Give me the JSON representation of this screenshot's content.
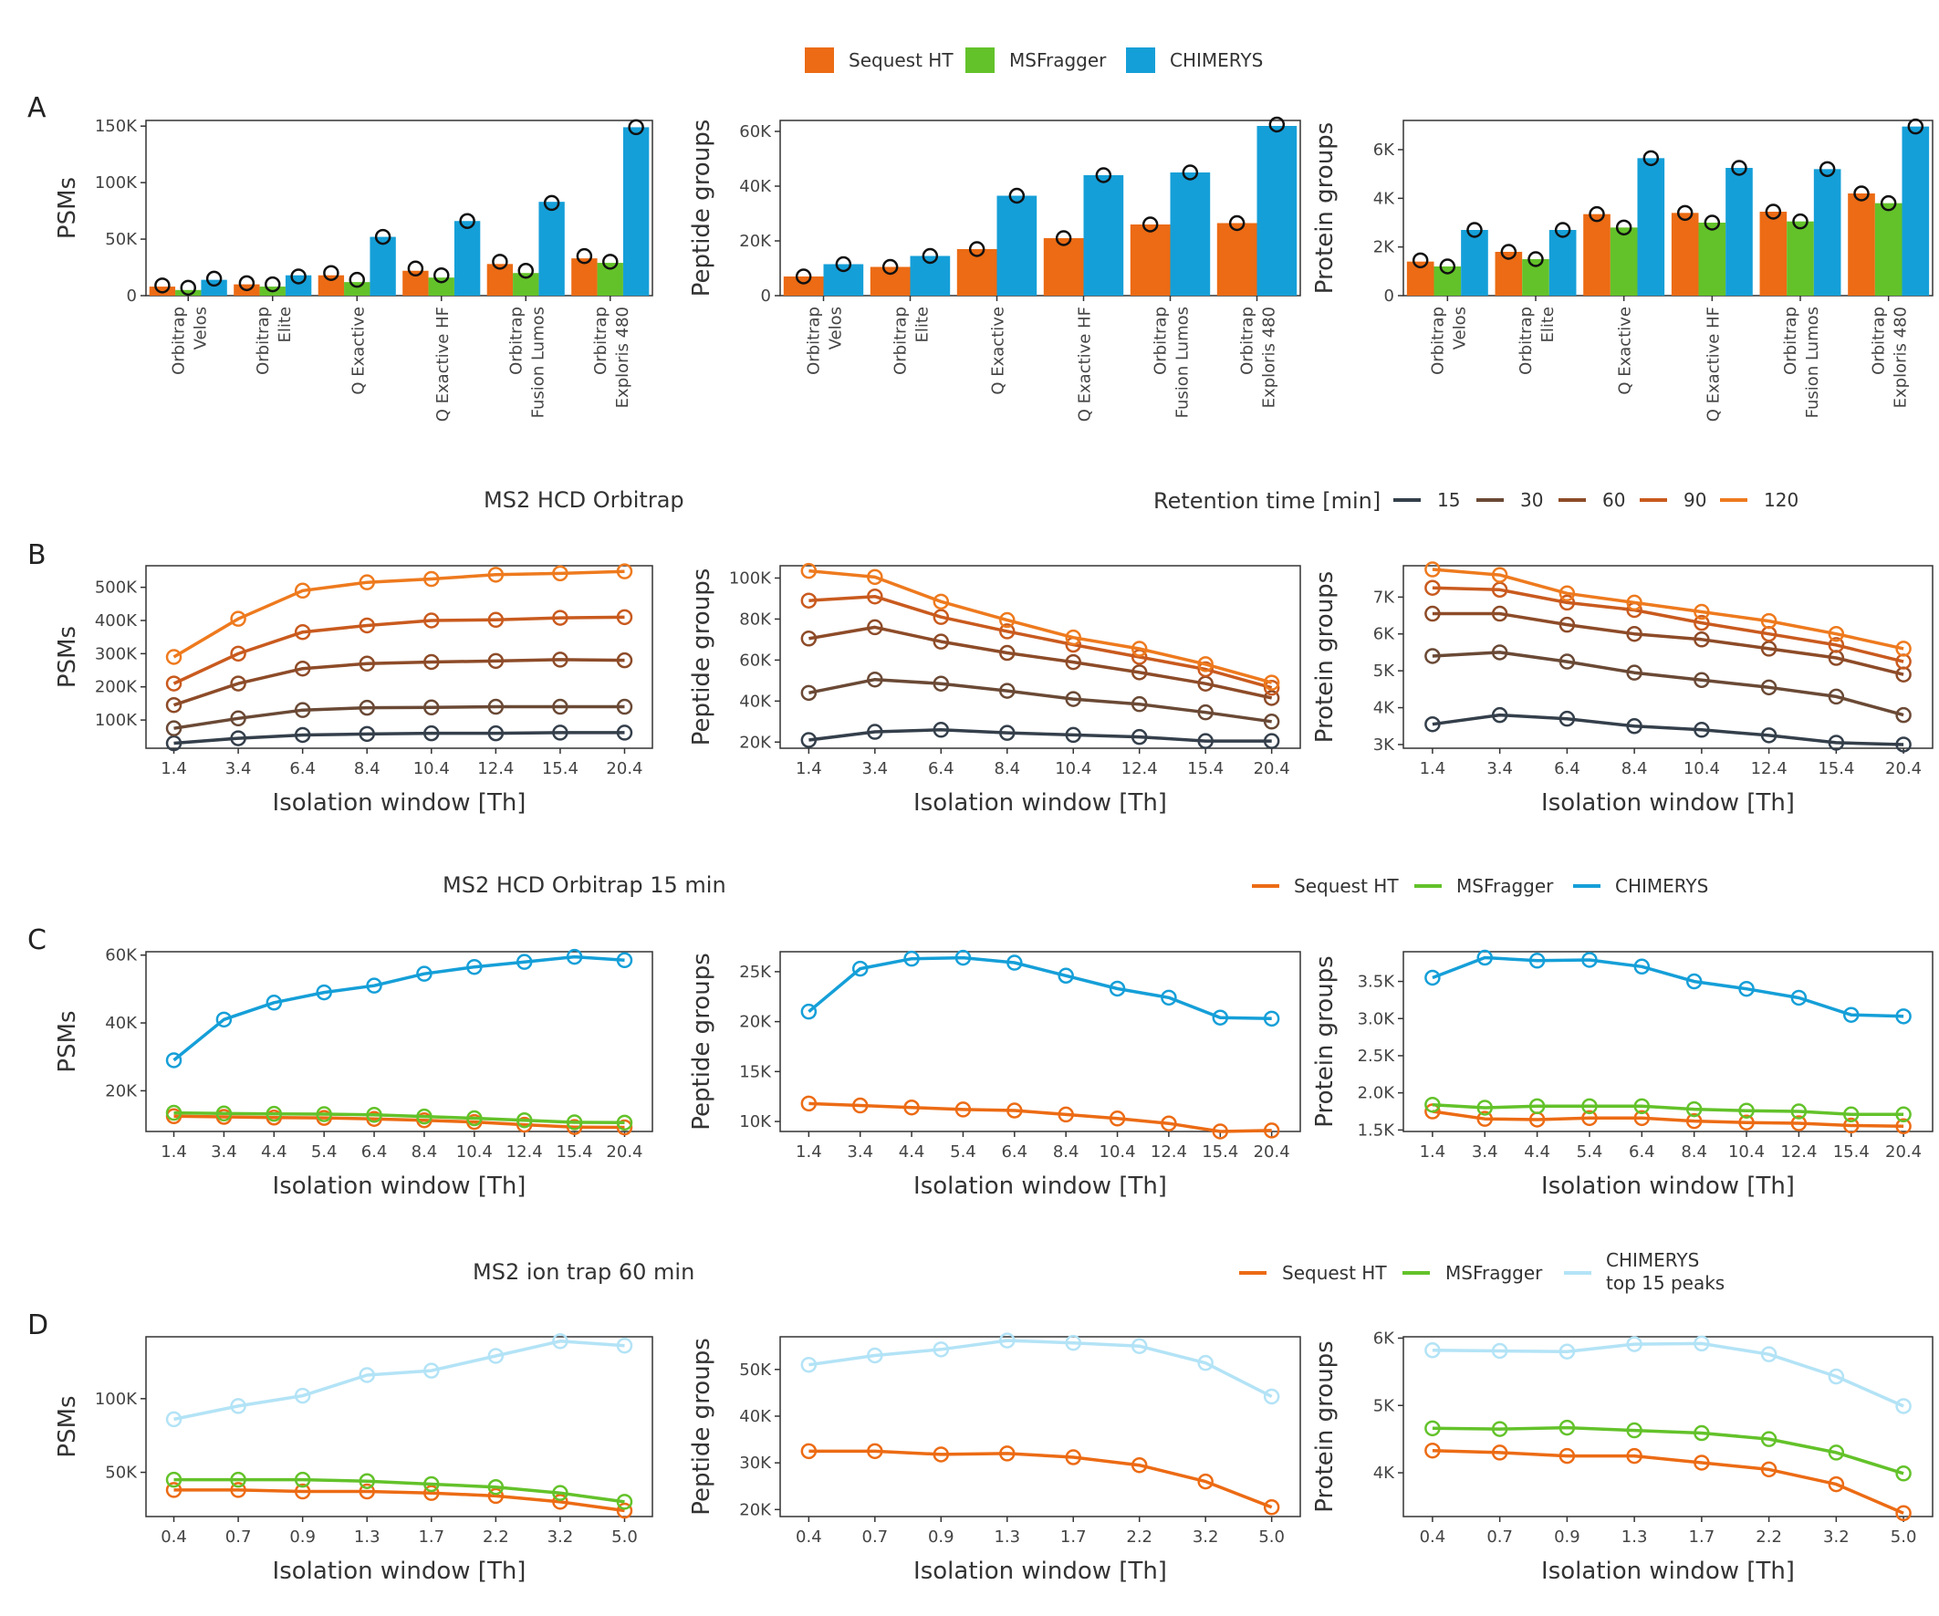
{
  "panel_letters": [
    "A",
    "B",
    "C",
    "D"
  ],
  "colors": {
    "sequest": "#ec6b14",
    "msfragger": "#63c22a",
    "chimerys": "#159fd8",
    "chimerys_light": "#b3e3f6",
    "rt15": "#343f4b",
    "rt30": "#6a4935",
    "rt60": "#8d4b28",
    "rt90": "#c95a1e",
    "rt120": "#ee7a1e"
  },
  "legends": {
    "tools": [
      "Sequest HT",
      "MSFragger",
      "CHIMERYS"
    ],
    "rt_title": "Retention time [min]",
    "rt_values": [
      "15",
      "30",
      "60",
      "90",
      "120"
    ],
    "d_items": [
      "Sequest HT",
      "MSFragger",
      "CHIMERYS",
      "top 15 peaks"
    ]
  },
  "titles": {
    "b": "MS2 HCD Orbitrap",
    "c": "MS2 HCD Orbitrap 15 min",
    "d": "MS2 ion trap 60 min"
  },
  "chart_data": [
    {
      "id": "A1",
      "type": "bar",
      "ylabel": "PSMs",
      "ylim": [
        0,
        155000
      ],
      "yticks": [
        0,
        50000,
        100000,
        150000
      ],
      "ytick_labels": [
        "0",
        "50K",
        "100K",
        "150K"
      ],
      "categories": [
        [
          "Orbitrap",
          "Velos"
        ],
        [
          "Orbitrap",
          "Elite"
        ],
        [
          "Q Exactive"
        ],
        [
          "Q Exactive HF"
        ],
        [
          "Orbitrap",
          "Fusion Lumos"
        ],
        [
          "Orbitrap",
          "Exploris 480"
        ]
      ],
      "series": [
        {
          "name": "Sequest HT",
          "values": [
            8000,
            10000,
            18000,
            22000,
            28000,
            33000
          ],
          "points": [
            9000,
            11000,
            20000,
            24000,
            30000,
            35000
          ]
        },
        {
          "name": "MSFragger",
          "values": [
            5000,
            8000,
            12000,
            16000,
            20000,
            29000
          ],
          "points": [
            7000,
            10000,
            14000,
            18000,
            22000,
            30000
          ]
        },
        {
          "name": "CHIMERYS",
          "values": [
            14000,
            18000,
            52000,
            66000,
            83000,
            149000
          ],
          "points": [
            15000,
            17000,
            52000,
            66000,
            82000,
            149000
          ]
        }
      ]
    },
    {
      "id": "A2",
      "type": "bar",
      "ylabel": "Peptide groups",
      "ylim": [
        0,
        64000
      ],
      "yticks": [
        0,
        20000,
        40000,
        60000
      ],
      "ytick_labels": [
        "0",
        "20K",
        "40K",
        "60K"
      ],
      "categories": [
        [
          "Orbitrap",
          "Velos"
        ],
        [
          "Orbitrap",
          "Elite"
        ],
        [
          "Q Exactive"
        ],
        [
          "Q Exactive HF"
        ],
        [
          "Orbitrap",
          "Fusion Lumos"
        ],
        [
          "Orbitrap",
          "Exploris 480"
        ]
      ],
      "series": [
        {
          "name": "Sequest HT",
          "values": [
            7000,
            10500,
            17000,
            21000,
            26000,
            26500
          ],
          "points": [
            7000,
            10500,
            17000,
            21000,
            26000,
            26500
          ]
        },
        {
          "name": "CHIMERYS",
          "values": [
            11500,
            14500,
            36500,
            44000,
            45000,
            62000
          ],
          "points": [
            11500,
            14500,
            36500,
            44000,
            45000,
            62500
          ]
        }
      ]
    },
    {
      "id": "A3",
      "type": "bar",
      "ylabel": "Protein groups",
      "ylim": [
        0,
        7200
      ],
      "yticks": [
        0,
        2000,
        4000,
        6000
      ],
      "ytick_labels": [
        "0",
        "2K",
        "4K",
        "6K"
      ],
      "categories": [
        [
          "Orbitrap",
          "Velos"
        ],
        [
          "Orbitrap",
          "Elite"
        ],
        [
          "Q Exactive"
        ],
        [
          "Q Exactive HF"
        ],
        [
          "Orbitrap",
          "Fusion Lumos"
        ],
        [
          "Orbitrap",
          "Exploris 480"
        ]
      ],
      "series": [
        {
          "name": "Sequest HT",
          "values": [
            1400,
            1800,
            3350,
            3400,
            3450,
            4200
          ],
          "points": [
            1450,
            1800,
            3350,
            3400,
            3450,
            4200
          ]
        },
        {
          "name": "MSFragger",
          "values": [
            1200,
            1500,
            2800,
            3000,
            3050,
            3800
          ],
          "points": [
            1200,
            1500,
            2800,
            3000,
            3050,
            3800
          ]
        },
        {
          "name": "CHIMERYS",
          "values": [
            2700,
            2700,
            5650,
            5250,
            5200,
            6950
          ],
          "points": [
            2700,
            2700,
            5650,
            5250,
            5200,
            6950
          ]
        }
      ]
    },
    {
      "id": "B1",
      "type": "line",
      "xlabel": "Isolation window [Th]",
      "ylabel": "PSMs",
      "x": [
        "1.4",
        "3.4",
        "6.4",
        "8.4",
        "10.4",
        "12.4",
        "15.4",
        "20.4"
      ],
      "ylim": [
        15000,
        565000
      ],
      "yticks": [
        100000,
        200000,
        300000,
        400000,
        500000
      ],
      "ytick_labels": [
        "100K",
        "200K",
        "300K",
        "400K",
        "500K"
      ],
      "series": [
        {
          "name": "15",
          "color_key": "rt15",
          "values": [
            30000,
            45000,
            55000,
            58000,
            60000,
            60000,
            62000,
            62000
          ]
        },
        {
          "name": "30",
          "color_key": "rt30",
          "values": [
            75000,
            105000,
            130000,
            137000,
            138000,
            140000,
            140000,
            140000
          ]
        },
        {
          "name": "60",
          "color_key": "rt60",
          "values": [
            145000,
            210000,
            255000,
            270000,
            275000,
            278000,
            282000,
            280000
          ]
        },
        {
          "name": "90",
          "color_key": "rt90",
          "values": [
            210000,
            300000,
            365000,
            385000,
            400000,
            402000,
            408000,
            410000
          ]
        },
        {
          "name": "120",
          "color_key": "rt120",
          "values": [
            290000,
            405000,
            490000,
            515000,
            525000,
            538000,
            542000,
            548000
          ]
        }
      ]
    },
    {
      "id": "B2",
      "type": "line",
      "xlabel": "Isolation window [Th]",
      "ylabel": "Peptide groups",
      "x": [
        "1.4",
        "3.4",
        "6.4",
        "8.4",
        "10.4",
        "12.4",
        "15.4",
        "20.4"
      ],
      "ylim": [
        17000,
        106000
      ],
      "yticks": [
        20000,
        40000,
        60000,
        80000,
        100000
      ],
      "ytick_labels": [
        "20K",
        "40K",
        "60K",
        "80K",
        "100K"
      ],
      "series": [
        {
          "name": "15",
          "color_key": "rt15",
          "values": [
            21000,
            25000,
            26000,
            24500,
            23500,
            22500,
            20500,
            20500
          ]
        },
        {
          "name": "30",
          "color_key": "rt30",
          "values": [
            44000,
            50500,
            48500,
            45000,
            41000,
            38500,
            34500,
            30000
          ]
        },
        {
          "name": "60",
          "color_key": "rt60",
          "values": [
            70500,
            76000,
            69000,
            63500,
            59000,
            54000,
            48500,
            41500
          ]
        },
        {
          "name": "90",
          "color_key": "rt90",
          "values": [
            89000,
            91000,
            81000,
            74000,
            67500,
            61500,
            55500,
            46500
          ]
        },
        {
          "name": "120",
          "color_key": "rt120",
          "values": [
            103500,
            100500,
            88500,
            79500,
            71000,
            65500,
            58000,
            49000
          ]
        }
      ]
    },
    {
      "id": "B3",
      "type": "line",
      "xlabel": "Isolation window [Th]",
      "ylabel": "Protein groups",
      "x": [
        "1.4",
        "3.4",
        "6.4",
        "8.4",
        "10.4",
        "12.4",
        "15.4",
        "20.4"
      ],
      "ylim": [
        2900,
        7850
      ],
      "yticks": [
        3000,
        4000,
        5000,
        6000,
        7000
      ],
      "ytick_labels": [
        "3K",
        "4K",
        "5K",
        "6K",
        "7K"
      ],
      "series": [
        {
          "name": "15",
          "color_key": "rt15",
          "values": [
            3550,
            3800,
            3700,
            3500,
            3400,
            3250,
            3050,
            3000
          ]
        },
        {
          "name": "30",
          "color_key": "rt30",
          "values": [
            5400,
            5500,
            5250,
            4950,
            4750,
            4550,
            4300,
            3800
          ]
        },
        {
          "name": "60",
          "color_key": "rt60",
          "values": [
            6550,
            6550,
            6250,
            6000,
            5850,
            5600,
            5350,
            4900
          ]
        },
        {
          "name": "90",
          "color_key": "rt90",
          "values": [
            7250,
            7200,
            6850,
            6650,
            6300,
            6000,
            5700,
            5250
          ]
        },
        {
          "name": "120",
          "color_key": "rt120",
          "values": [
            7750,
            7600,
            7100,
            6850,
            6600,
            6350,
            6000,
            5600
          ]
        }
      ]
    },
    {
      "id": "C1",
      "type": "line",
      "xlabel": "Isolation window [Th]",
      "ylabel": "PSMs",
      "x": [
        "1.4",
        "3.4",
        "4.4",
        "5.4",
        "6.4",
        "8.4",
        "10.4",
        "12.4",
        "15.4",
        "20.4"
      ],
      "ylim": [
        8000,
        61000
      ],
      "yticks": [
        20000,
        40000,
        60000
      ],
      "ytick_labels": [
        "20K",
        "40K",
        "60K"
      ],
      "series": [
        {
          "name": "Sequest HT",
          "color_key": "sequest",
          "values": [
            12500,
            12300,
            12100,
            12000,
            11700,
            11300,
            10800,
            10000,
            9300,
            9200
          ]
        },
        {
          "name": "MSFragger",
          "color_key": "msfragger",
          "values": [
            13500,
            13300,
            13200,
            13100,
            12900,
            12400,
            11900,
            11300,
            10700,
            10600
          ]
        },
        {
          "name": "CHIMERYS",
          "color_key": "chimerys",
          "values": [
            29000,
            41000,
            46000,
            49000,
            51000,
            54500,
            56500,
            58000,
            59500,
            58500
          ]
        }
      ]
    },
    {
      "id": "C2",
      "type": "line",
      "xlabel": "Isolation window [Th]",
      "ylabel": "Peptide groups",
      "x": [
        "1.4",
        "3.4",
        "4.4",
        "5.4",
        "6.4",
        "8.4",
        "10.4",
        "12.4",
        "15.4",
        "20.4"
      ],
      "ylim": [
        9000,
        27000
      ],
      "yticks": [
        10000,
        15000,
        20000,
        25000
      ],
      "ytick_labels": [
        "10K",
        "15K",
        "20K",
        "25K"
      ],
      "series": [
        {
          "name": "Sequest HT",
          "color_key": "sequest",
          "values": [
            11800,
            11600,
            11400,
            11200,
            11100,
            10700,
            10300,
            9800,
            9000,
            9100
          ]
        },
        {
          "name": "CHIMERYS",
          "color_key": "chimerys",
          "values": [
            21000,
            25300,
            26300,
            26400,
            25900,
            24600,
            23300,
            22400,
            20400,
            20300
          ]
        }
      ]
    },
    {
      "id": "C3",
      "type": "line",
      "xlabel": "Isolation window [Th]",
      "ylabel": "Protein groups",
      "x": [
        "1.4",
        "3.4",
        "4.4",
        "5.4",
        "6.4",
        "8.4",
        "10.4",
        "12.4",
        "15.4",
        "20.4"
      ],
      "ylim": [
        1480,
        3900
      ],
      "yticks": [
        1500,
        2000,
        2500,
        3000,
        3500
      ],
      "ytick_labels": [
        "1.5K",
        "2.0K",
        "2.5K",
        "3.0K",
        "3.5K"
      ],
      "series": [
        {
          "name": "Sequest HT",
          "color_key": "sequest",
          "values": [
            1750,
            1650,
            1640,
            1660,
            1660,
            1620,
            1600,
            1590,
            1560,
            1550
          ]
        },
        {
          "name": "MSFragger",
          "color_key": "msfragger",
          "values": [
            1840,
            1800,
            1820,
            1820,
            1820,
            1780,
            1760,
            1750,
            1710,
            1710
          ]
        },
        {
          "name": "CHIMERYS",
          "color_key": "chimerys",
          "values": [
            3550,
            3820,
            3780,
            3790,
            3700,
            3500,
            3400,
            3280,
            3050,
            3030
          ]
        }
      ]
    },
    {
      "id": "D1",
      "type": "line",
      "xlabel": "Isolation window [Th]",
      "ylabel": "PSMs",
      "x": [
        "0.4",
        "0.7",
        "0.9",
        "1.3",
        "1.7",
        "2.2",
        "3.2",
        "5.0"
      ],
      "ylim": [
        20000,
        142000
      ],
      "yticks": [
        50000,
        100000
      ],
      "ytick_labels": [
        "50K",
        "100K"
      ],
      "series": [
        {
          "name": "Sequest HT",
          "color_key": "sequest",
          "values": [
            38000,
            38000,
            37000,
            37000,
            36000,
            34000,
            30000,
            24000
          ]
        },
        {
          "name": "MSFragger",
          "color_key": "msfragger",
          "values": [
            45000,
            45000,
            45000,
            44000,
            42000,
            40000,
            36000,
            30000
          ]
        },
        {
          "name": "CHIMERYS top 15 peaks",
          "color_key": "chimerys_light",
          "values": [
            86000,
            95000,
            102000,
            116000,
            119000,
            129000,
            139000,
            136000
          ]
        }
      ]
    },
    {
      "id": "D2",
      "type": "line",
      "xlabel": "Isolation window [Th]",
      "ylabel": "Peptide groups",
      "x": [
        "0.4",
        "0.7",
        "0.9",
        "1.3",
        "1.7",
        "2.2",
        "3.2",
        "5.0"
      ],
      "ylim": [
        18500,
        57000
      ],
      "yticks": [
        20000,
        30000,
        40000,
        50000
      ],
      "ytick_labels": [
        "20K",
        "30K",
        "40K",
        "50K"
      ],
      "series": [
        {
          "name": "Sequest HT",
          "color_key": "sequest",
          "values": [
            32500,
            32500,
            31800,
            32000,
            31200,
            29500,
            26000,
            20500
          ]
        },
        {
          "name": "CHIMERYS top 15 peaks",
          "color_key": "chimerys_light",
          "values": [
            51000,
            53000,
            54300,
            56200,
            55700,
            55000,
            51400,
            44200
          ]
        }
      ]
    },
    {
      "id": "D3",
      "type": "line",
      "xlabel": "Isolation window [Th]",
      "ylabel": "Protein groups",
      "x": [
        "0.4",
        "0.7",
        "0.9",
        "1.3",
        "1.7",
        "2.2",
        "3.2",
        "5.0"
      ],
      "ylim": [
        3350,
        6020
      ],
      "yticks": [
        4000,
        5000,
        6000
      ],
      "ytick_labels": [
        "4K",
        "5K",
        "6K"
      ],
      "series": [
        {
          "name": "Sequest HT",
          "color_key": "sequest",
          "values": [
            4330,
            4300,
            4250,
            4250,
            4150,
            4050,
            3830,
            3400
          ]
        },
        {
          "name": "MSFragger",
          "color_key": "msfragger",
          "values": [
            4660,
            4650,
            4670,
            4630,
            4590,
            4500,
            4300,
            3990
          ]
        },
        {
          "name": "CHIMERYS top 15 peaks",
          "color_key": "chimerys_light",
          "values": [
            5820,
            5810,
            5800,
            5910,
            5920,
            5760,
            5430,
            4990
          ]
        }
      ]
    }
  ]
}
